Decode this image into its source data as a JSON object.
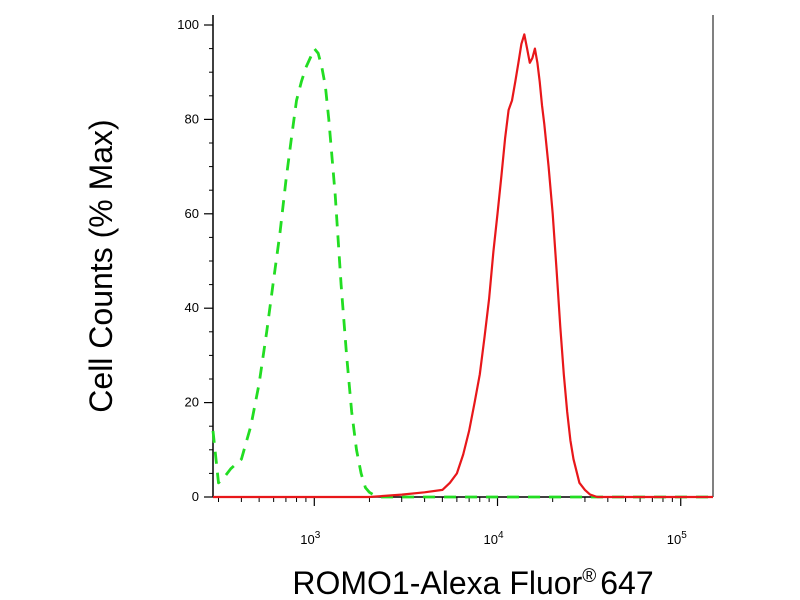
{
  "chart_data": {
    "type": "line",
    "xlabel": "ROMO1-Alexa Fluor",
    "xlabel_superscript": "®",
    "xlabel_suffix": "647",
    "ylabel": "Cell Counts (% Max)",
    "x_scale": "log",
    "xlim": [
      280,
      150000
    ],
    "ylim": [
      0,
      100
    ],
    "y_ticks": [
      0,
      20,
      40,
      60,
      80,
      100
    ],
    "x_ticks": [
      {
        "value": 1000,
        "base": "10",
        "exp": "3"
      },
      {
        "value": 10000,
        "base": "10",
        "exp": "4"
      },
      {
        "value": 100000,
        "base": "10",
        "exp": "5"
      }
    ],
    "grid": false,
    "legend": "none",
    "series": [
      {
        "color": "#22dd22",
        "style": "dashed",
        "x": [
          280,
          300,
          320,
          350,
          400,
          450,
          500,
          550,
          600,
          650,
          700,
          750,
          800,
          850,
          900,
          950,
          1000,
          1050,
          1100,
          1150,
          1200,
          1300,
          1400,
          1500,
          1600,
          1700,
          1800,
          1900,
          2000,
          2100,
          2300,
          3000,
          5000,
          10000,
          50000,
          150000
        ],
        "y": [
          14,
          3,
          4,
          6,
          8,
          15,
          24,
          35,
          46,
          56,
          67,
          76,
          84,
          88,
          91,
          93,
          95,
          94,
          91,
          87,
          80,
          64,
          45,
          30,
          18,
          10,
          5,
          2,
          1,
          0.5,
          0,
          0,
          0,
          0,
          0,
          0
        ]
      },
      {
        "color": "#e8171a",
        "style": "solid",
        "x": [
          280,
          2000,
          3000,
          4000,
          5000,
          5500,
          6000,
          6500,
          7000,
          7500,
          8000,
          8500,
          9000,
          9500,
          10000,
          10500,
          11000,
          11500,
          12000,
          12500,
          13000,
          13500,
          14000,
          14500,
          15000,
          15500,
          16000,
          16500,
          17000,
          17500,
          18000,
          19000,
          20000,
          21000,
          22000,
          23000,
          24000,
          25000,
          26000,
          28000,
          30000,
          32000,
          35000,
          40000,
          50000,
          150000
        ],
        "y": [
          0,
          0,
          0.5,
          1,
          1.5,
          3,
          5,
          9,
          14,
          20,
          26,
          34,
          42,
          52,
          60,
          68,
          76,
          82,
          84,
          88,
          92,
          96,
          98,
          95,
          92,
          93,
          95,
          92,
          88,
          83,
          79,
          70,
          60,
          48,
          36,
          26,
          18,
          12,
          8,
          3,
          1.5,
          0.5,
          0,
          0,
          0,
          0
        ]
      }
    ]
  }
}
